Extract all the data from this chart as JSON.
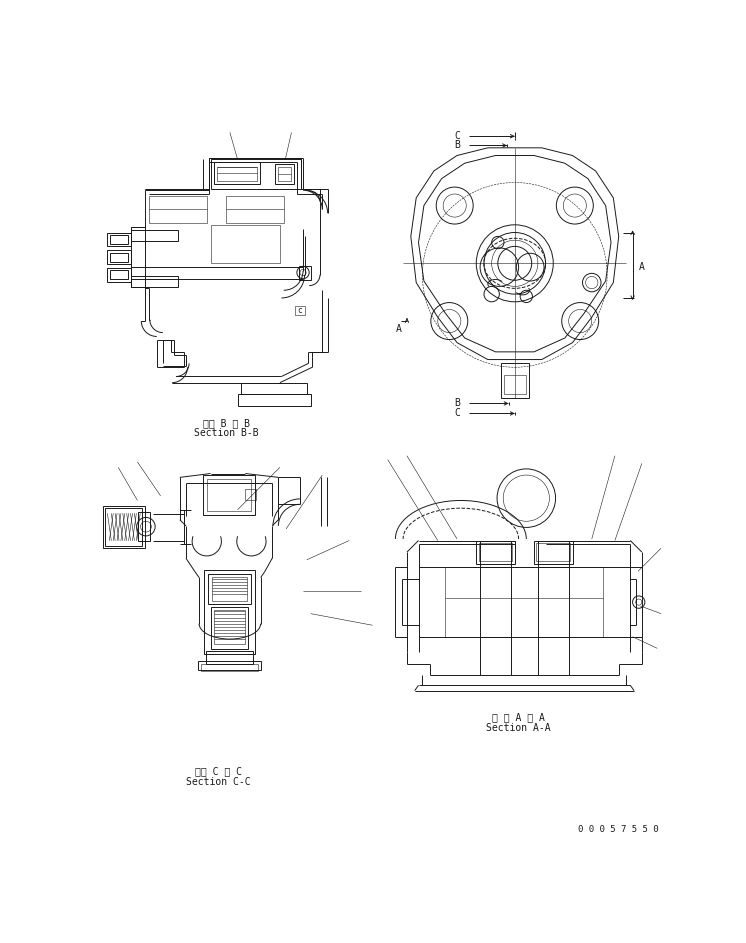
{
  "bg_color": "#ffffff",
  "line_color": "#1a1a1a",
  "lw": 0.7,
  "tlw": 0.4,
  "fig_width": 7.46,
  "fig_height": 9.43,
  "dpi": 100,
  "labels": {
    "section_bb_jp": "断面 B － B",
    "section_bb_en": "Section B-B",
    "section_cc_jp": "断面 C － C",
    "section_cc_en": "Section C-C",
    "section_aa_jp": "断 面 A － A",
    "section_aa_en": "Section A-A",
    "part_number": "0 0 0 5 7 5 5 0",
    "dim_A": "A",
    "dim_B": "B",
    "dim_C": "C"
  },
  "fs": 7,
  "fs_pn": 6.5
}
